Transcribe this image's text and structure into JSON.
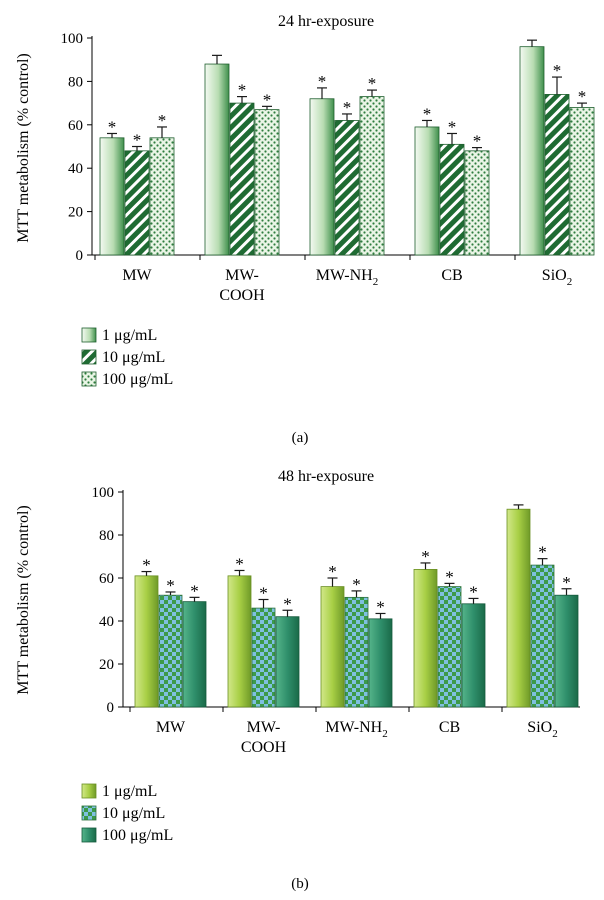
{
  "chart_data": [
    {
      "type": "bar",
      "title": "24 hr-exposure",
      "ylabel": "MTT metabolism (% control)",
      "ylim": [
        0,
        100
      ],
      "yticks": [
        0,
        20,
        40,
        60,
        80,
        100
      ],
      "categories": [
        {
          "label": "MW",
          "lines": [
            "MW"
          ]
        },
        {
          "label": "MW-COOH",
          "lines": [
            "MW-",
            "COOH"
          ]
        },
        {
          "label": "MW-NH2",
          "lines": [
            "MW-NH",
            "2"
          ]
        },
        {
          "label": "CB",
          "lines": [
            "CB"
          ]
        },
        {
          "label": "SiO2",
          "lines": [
            "SiO",
            "2"
          ]
        }
      ],
      "series": [
        {
          "name": "1 μg/mL",
          "pattern": "gradient-light",
          "values": [
            54,
            88,
            72,
            59,
            96
          ],
          "errors": [
            2,
            4,
            5,
            3,
            3
          ],
          "significant": [
            true,
            false,
            true,
            true,
            false
          ]
        },
        {
          "name": "10 μg/mL",
          "pattern": "stripes",
          "values": [
            48,
            70,
            62,
            51,
            74
          ],
          "errors": [
            2,
            3,
            3,
            5,
            8
          ],
          "significant": [
            true,
            true,
            true,
            true,
            true
          ]
        },
        {
          "name": "100 μg/mL",
          "pattern": "dots",
          "values": [
            54,
            67,
            73,
            48,
            68
          ],
          "errors": [
            5,
            1.5,
            3,
            1.5,
            2
          ],
          "significant": [
            true,
            true,
            true,
            true,
            true
          ]
        }
      ],
      "legend_position": "bottom-left",
      "panel_label": "(a)",
      "colors": {
        "dark": "#1f6b33",
        "mid": "#3f9a4e",
        "light": "#e6f2e2"
      }
    },
    {
      "type": "bar",
      "title": "48 hr-exposure",
      "ylabel": "MTT metabolism (% control)",
      "ylim": [
        0,
        100
      ],
      "yticks": [
        0,
        20,
        40,
        60,
        80,
        100
      ],
      "categories": [
        {
          "label": "MW",
          "lines": [
            "MW"
          ]
        },
        {
          "label": "MW-COOH",
          "lines": [
            "MW-",
            "COOH"
          ]
        },
        {
          "label": "MW-NH2",
          "lines": [
            "MW-NH",
            "2"
          ]
        },
        {
          "label": "CB",
          "lines": [
            "CB"
          ]
        },
        {
          "label": "SiO2",
          "lines": [
            "SiO",
            "2"
          ]
        }
      ],
      "series": [
        {
          "name": "1 μg/mL",
          "pattern": "lime-gradient",
          "values": [
            61,
            61,
            56,
            64,
            92
          ],
          "errors": [
            2,
            2.5,
            4,
            3,
            2
          ],
          "significant": [
            true,
            true,
            true,
            true,
            false
          ]
        },
        {
          "name": "10 μg/mL",
          "pattern": "checker",
          "values": [
            52,
            46,
            51,
            56,
            66
          ],
          "errors": [
            1.5,
            4,
            3,
            1.5,
            3
          ],
          "significant": [
            true,
            true,
            true,
            true,
            true
          ]
        },
        {
          "name": "100 μg/mL",
          "pattern": "green-gradient",
          "values": [
            49,
            42,
            41,
            48,
            52
          ],
          "errors": [
            2,
            3,
            2.5,
            2.5,
            3
          ],
          "significant": [
            true,
            true,
            true,
            true,
            true
          ]
        }
      ],
      "legend_position": "bottom-left",
      "panel_label": "(b)",
      "colors": {
        "lime": "#a8cf45",
        "teal": "#2f8f6b",
        "checkerLight": "#7fc0e0",
        "checkerDark": "#3c9a4a"
      }
    }
  ]
}
